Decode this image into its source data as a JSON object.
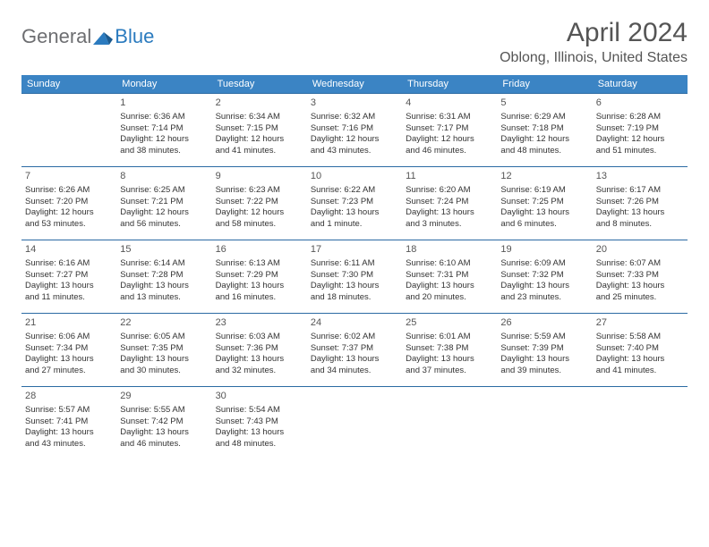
{
  "logo": {
    "text_general": "General",
    "text_blue": "Blue"
  },
  "title": "April 2024",
  "location": "Oblong, Illinois, United States",
  "accent_color": "#3b84c4",
  "border_color": "#2b6aa3",
  "weekdays": [
    "Sunday",
    "Monday",
    "Tuesday",
    "Wednesday",
    "Thursday",
    "Friday",
    "Saturday"
  ],
  "weeks": [
    [
      null,
      {
        "day": "1",
        "sunrise": "Sunrise: 6:36 AM",
        "sunset": "Sunset: 7:14 PM",
        "daylight1": "Daylight: 12 hours",
        "daylight2": "and 38 minutes."
      },
      {
        "day": "2",
        "sunrise": "Sunrise: 6:34 AM",
        "sunset": "Sunset: 7:15 PM",
        "daylight1": "Daylight: 12 hours",
        "daylight2": "and 41 minutes."
      },
      {
        "day": "3",
        "sunrise": "Sunrise: 6:32 AM",
        "sunset": "Sunset: 7:16 PM",
        "daylight1": "Daylight: 12 hours",
        "daylight2": "and 43 minutes."
      },
      {
        "day": "4",
        "sunrise": "Sunrise: 6:31 AM",
        "sunset": "Sunset: 7:17 PM",
        "daylight1": "Daylight: 12 hours",
        "daylight2": "and 46 minutes."
      },
      {
        "day": "5",
        "sunrise": "Sunrise: 6:29 AM",
        "sunset": "Sunset: 7:18 PM",
        "daylight1": "Daylight: 12 hours",
        "daylight2": "and 48 minutes."
      },
      {
        "day": "6",
        "sunrise": "Sunrise: 6:28 AM",
        "sunset": "Sunset: 7:19 PM",
        "daylight1": "Daylight: 12 hours",
        "daylight2": "and 51 minutes."
      }
    ],
    [
      {
        "day": "7",
        "sunrise": "Sunrise: 6:26 AM",
        "sunset": "Sunset: 7:20 PM",
        "daylight1": "Daylight: 12 hours",
        "daylight2": "and 53 minutes."
      },
      {
        "day": "8",
        "sunrise": "Sunrise: 6:25 AM",
        "sunset": "Sunset: 7:21 PM",
        "daylight1": "Daylight: 12 hours",
        "daylight2": "and 56 minutes."
      },
      {
        "day": "9",
        "sunrise": "Sunrise: 6:23 AM",
        "sunset": "Sunset: 7:22 PM",
        "daylight1": "Daylight: 12 hours",
        "daylight2": "and 58 minutes."
      },
      {
        "day": "10",
        "sunrise": "Sunrise: 6:22 AM",
        "sunset": "Sunset: 7:23 PM",
        "daylight1": "Daylight: 13 hours",
        "daylight2": "and 1 minute."
      },
      {
        "day": "11",
        "sunrise": "Sunrise: 6:20 AM",
        "sunset": "Sunset: 7:24 PM",
        "daylight1": "Daylight: 13 hours",
        "daylight2": "and 3 minutes."
      },
      {
        "day": "12",
        "sunrise": "Sunrise: 6:19 AM",
        "sunset": "Sunset: 7:25 PM",
        "daylight1": "Daylight: 13 hours",
        "daylight2": "and 6 minutes."
      },
      {
        "day": "13",
        "sunrise": "Sunrise: 6:17 AM",
        "sunset": "Sunset: 7:26 PM",
        "daylight1": "Daylight: 13 hours",
        "daylight2": "and 8 minutes."
      }
    ],
    [
      {
        "day": "14",
        "sunrise": "Sunrise: 6:16 AM",
        "sunset": "Sunset: 7:27 PM",
        "daylight1": "Daylight: 13 hours",
        "daylight2": "and 11 minutes."
      },
      {
        "day": "15",
        "sunrise": "Sunrise: 6:14 AM",
        "sunset": "Sunset: 7:28 PM",
        "daylight1": "Daylight: 13 hours",
        "daylight2": "and 13 minutes."
      },
      {
        "day": "16",
        "sunrise": "Sunrise: 6:13 AM",
        "sunset": "Sunset: 7:29 PM",
        "daylight1": "Daylight: 13 hours",
        "daylight2": "and 16 minutes."
      },
      {
        "day": "17",
        "sunrise": "Sunrise: 6:11 AM",
        "sunset": "Sunset: 7:30 PM",
        "daylight1": "Daylight: 13 hours",
        "daylight2": "and 18 minutes."
      },
      {
        "day": "18",
        "sunrise": "Sunrise: 6:10 AM",
        "sunset": "Sunset: 7:31 PM",
        "daylight1": "Daylight: 13 hours",
        "daylight2": "and 20 minutes."
      },
      {
        "day": "19",
        "sunrise": "Sunrise: 6:09 AM",
        "sunset": "Sunset: 7:32 PM",
        "daylight1": "Daylight: 13 hours",
        "daylight2": "and 23 minutes."
      },
      {
        "day": "20",
        "sunrise": "Sunrise: 6:07 AM",
        "sunset": "Sunset: 7:33 PM",
        "daylight1": "Daylight: 13 hours",
        "daylight2": "and 25 minutes."
      }
    ],
    [
      {
        "day": "21",
        "sunrise": "Sunrise: 6:06 AM",
        "sunset": "Sunset: 7:34 PM",
        "daylight1": "Daylight: 13 hours",
        "daylight2": "and 27 minutes."
      },
      {
        "day": "22",
        "sunrise": "Sunrise: 6:05 AM",
        "sunset": "Sunset: 7:35 PM",
        "daylight1": "Daylight: 13 hours",
        "daylight2": "and 30 minutes."
      },
      {
        "day": "23",
        "sunrise": "Sunrise: 6:03 AM",
        "sunset": "Sunset: 7:36 PM",
        "daylight1": "Daylight: 13 hours",
        "daylight2": "and 32 minutes."
      },
      {
        "day": "24",
        "sunrise": "Sunrise: 6:02 AM",
        "sunset": "Sunset: 7:37 PM",
        "daylight1": "Daylight: 13 hours",
        "daylight2": "and 34 minutes."
      },
      {
        "day": "25",
        "sunrise": "Sunrise: 6:01 AM",
        "sunset": "Sunset: 7:38 PM",
        "daylight1": "Daylight: 13 hours",
        "daylight2": "and 37 minutes."
      },
      {
        "day": "26",
        "sunrise": "Sunrise: 5:59 AM",
        "sunset": "Sunset: 7:39 PM",
        "daylight1": "Daylight: 13 hours",
        "daylight2": "and 39 minutes."
      },
      {
        "day": "27",
        "sunrise": "Sunrise: 5:58 AM",
        "sunset": "Sunset: 7:40 PM",
        "daylight1": "Daylight: 13 hours",
        "daylight2": "and 41 minutes."
      }
    ],
    [
      {
        "day": "28",
        "sunrise": "Sunrise: 5:57 AM",
        "sunset": "Sunset: 7:41 PM",
        "daylight1": "Daylight: 13 hours",
        "daylight2": "and 43 minutes."
      },
      {
        "day": "29",
        "sunrise": "Sunrise: 5:55 AM",
        "sunset": "Sunset: 7:42 PM",
        "daylight1": "Daylight: 13 hours",
        "daylight2": "and 46 minutes."
      },
      {
        "day": "30",
        "sunrise": "Sunrise: 5:54 AM",
        "sunset": "Sunset: 7:43 PM",
        "daylight1": "Daylight: 13 hours",
        "daylight2": "and 48 minutes."
      },
      null,
      null,
      null,
      null
    ]
  ]
}
